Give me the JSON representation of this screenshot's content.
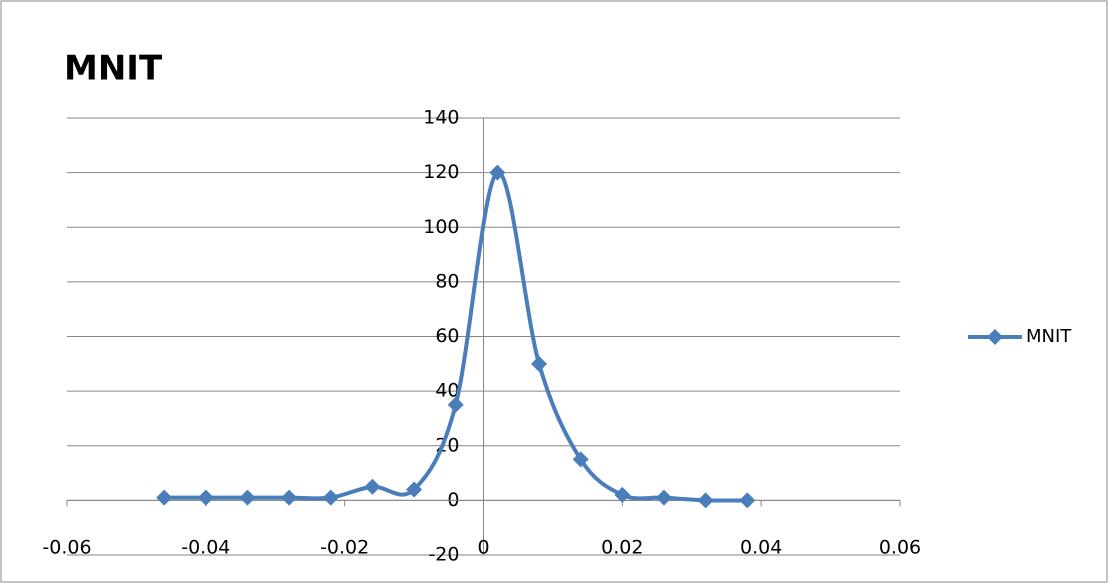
{
  "chart_data": {
    "type": "line",
    "smooth": true,
    "title": "MNIT",
    "x": [
      -0.046,
      -0.04,
      -0.034,
      -0.028,
      -0.022,
      -0.016,
      -0.01,
      -0.004,
      0.002,
      0.008,
      0.014,
      0.02,
      0.026,
      0.032,
      0.038
    ],
    "series": [
      {
        "name": "MNIT",
        "color": "#4a7ebb",
        "values": [
          1,
          1,
          1,
          1,
          1,
          5,
          4,
          35,
          120,
          50,
          15,
          2,
          1,
          0,
          0
        ]
      }
    ],
    "xlim": [
      -0.06,
      0.06
    ],
    "xticks": [
      -0.06,
      -0.04,
      -0.02,
      0,
      0.02,
      0.04,
      0.06
    ],
    "ylim": [
      -20,
      140
    ],
    "yticks": [
      -20,
      0,
      20,
      40,
      60,
      80,
      100,
      120,
      140
    ],
    "grid": true,
    "legend": "right"
  }
}
